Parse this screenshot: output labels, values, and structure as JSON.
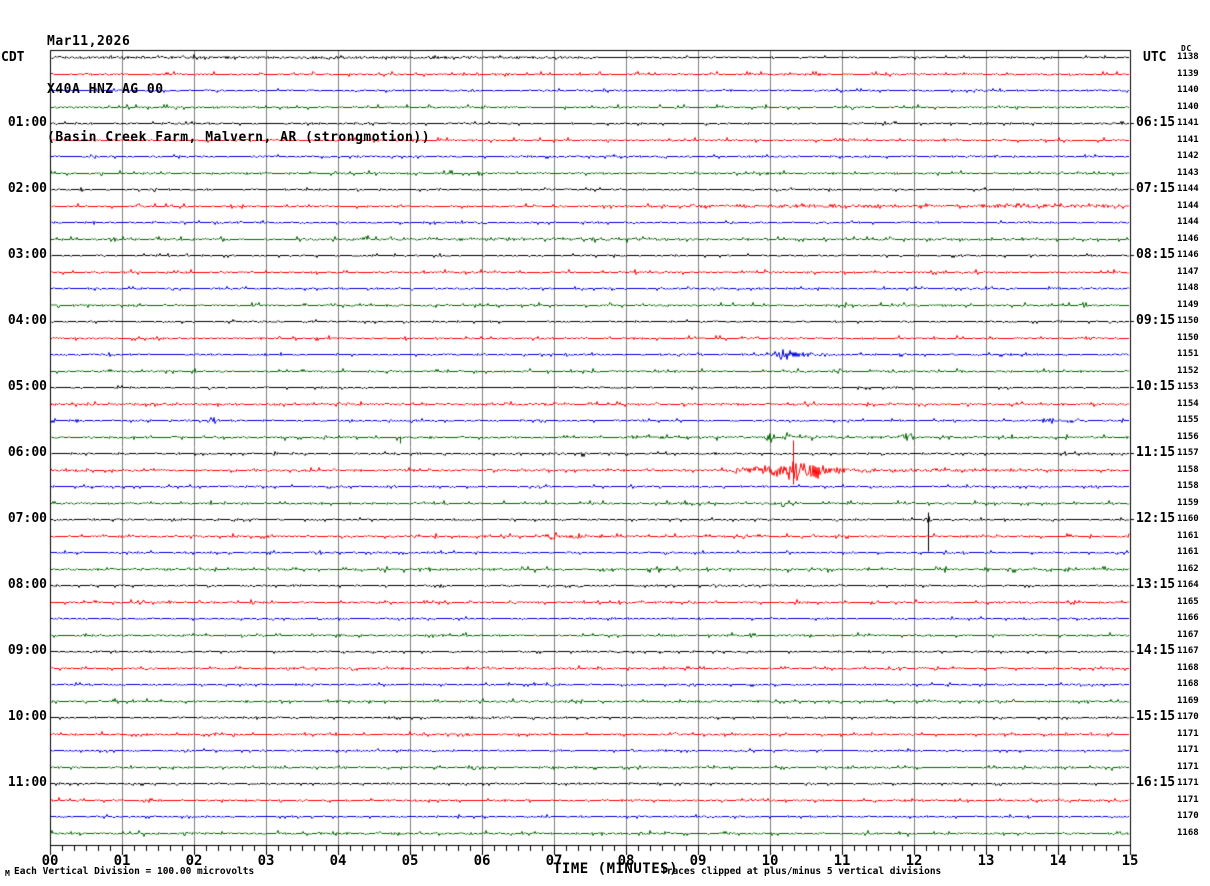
{
  "title": {
    "line1": "Mar11,2026",
    "line2": "X40A HNZ AG 00",
    "line3": "(Basin Creek Farm, Malvern, AR (strongmotion))"
  },
  "axis": {
    "left_timezone_label": "CDT",
    "right_timezone_label": "UTC",
    "dc_column_label": "DC",
    "x_axis_label": "TIME (MINUTES)",
    "x_tick_labels": [
      "00",
      "01",
      "02",
      "03",
      "04",
      "05",
      "06",
      "07",
      "08",
      "09",
      "10",
      "11",
      "12",
      "13",
      "14",
      "15"
    ],
    "footnote_marker": "M",
    "footnote_left": "Each Vertical Division =  100.00 microvolts",
    "footnote_right": "Traces clipped at plus/minus 5 vertical divisions"
  },
  "chart_data": {
    "type": "line",
    "subtype": "helicorder-seismogram",
    "date": "Mar11,2026",
    "station": "X40A HNZ AG 00",
    "location": "(Basin Creek Farm, Malvern, AR (strongmotion))",
    "minutes_per_line": 15,
    "x_axis": {
      "label": "TIME (MINUTES)",
      "min": 0,
      "max": 15,
      "major_tick_minutes": 1,
      "minor_tick_seconds": 10
    },
    "left_time_zone": "CDT",
    "right_time_zone": "UTC",
    "vertical_division": "100.00 microvolts",
    "clip_note": "Traces clipped at plus/minus 5 vertical divisions",
    "trace_color_cycle": [
      "black",
      "red",
      "blue",
      "green"
    ],
    "colors": {
      "black": "#000000",
      "red": "#ff0000",
      "blue": "#0000dd",
      "green": "#006400",
      "grid": "#808080"
    },
    "rows": [
      {
        "cdt": "",
        "utc": "",
        "dc": 1138,
        "color": "black",
        "amp": 0.7,
        "events": [
          {
            "t": "noise",
            "from": 0,
            "to": 7.6,
            "amp": 0.6
          }
        ]
      },
      {
        "cdt": "",
        "utc": "",
        "dc": 1139,
        "color": "red",
        "amp": 0.95,
        "events": []
      },
      {
        "cdt": "",
        "utc": "",
        "dc": 1140,
        "color": "blue",
        "amp": 0.8,
        "events": []
      },
      {
        "cdt": "",
        "utc": "",
        "dc": 1140,
        "color": "green",
        "amp": 1.0,
        "events": []
      },
      {
        "cdt": "01:00",
        "utc": "06:15",
        "dc": 1141,
        "color": "black",
        "amp": 0.7,
        "events": []
      },
      {
        "cdt": "",
        "utc": "",
        "dc": 1141,
        "color": "red",
        "amp": 0.95,
        "events": []
      },
      {
        "cdt": "",
        "utc": "",
        "dc": 1142,
        "color": "blue",
        "amp": 0.8,
        "events": []
      },
      {
        "cdt": "",
        "utc": "",
        "dc": 1143,
        "color": "green",
        "amp": 1.0,
        "events": []
      },
      {
        "cdt": "02:00",
        "utc": "07:15",
        "dc": 1144,
        "color": "black",
        "amp": 0.7,
        "events": []
      },
      {
        "cdt": "",
        "utc": "",
        "dc": 1144,
        "color": "red",
        "amp": 0.95,
        "events": [
          {
            "t": "noise",
            "from": 8.9,
            "to": 15,
            "amp": 0.8
          }
        ]
      },
      {
        "cdt": "",
        "utc": "",
        "dc": 1144,
        "color": "blue",
        "amp": 0.8,
        "events": []
      },
      {
        "cdt": "",
        "utc": "",
        "dc": 1146,
        "color": "green",
        "amp": 1.1,
        "events": [
          {
            "t": "noise",
            "from": 4,
            "to": 9,
            "amp": 0.5
          }
        ]
      },
      {
        "cdt": "03:00",
        "utc": "08:15",
        "dc": 1146,
        "color": "black",
        "amp": 0.7,
        "events": []
      },
      {
        "cdt": "",
        "utc": "",
        "dc": 1147,
        "color": "red",
        "amp": 0.95,
        "events": []
      },
      {
        "cdt": "",
        "utc": "",
        "dc": 1148,
        "color": "blue",
        "amp": 0.8,
        "events": []
      },
      {
        "cdt": "",
        "utc": "",
        "dc": 1149,
        "color": "green",
        "amp": 1.0,
        "events": []
      },
      {
        "cdt": "04:00",
        "utc": "09:15",
        "dc": 1150,
        "color": "black",
        "amp": 0.7,
        "events": []
      },
      {
        "cdt": "",
        "utc": "",
        "dc": 1150,
        "color": "red",
        "amp": 0.95,
        "events": [
          {
            "t": "burst",
            "m": 14.4,
            "w": 7,
            "amp": 2.5
          }
        ]
      },
      {
        "cdt": "",
        "utc": "",
        "dc": 1151,
        "color": "blue",
        "amp": 0.8,
        "events": [
          {
            "t": "burst",
            "m": 10.2,
            "w": 14,
            "amp": 5
          },
          {
            "t": "burst",
            "m": 10.55,
            "w": 22,
            "amp": 2
          }
        ]
      },
      {
        "cdt": "",
        "utc": "",
        "dc": 1152,
        "color": "green",
        "amp": 1.0,
        "events": []
      },
      {
        "cdt": "05:00",
        "utc": "10:15",
        "dc": 1153,
        "color": "black",
        "amp": 0.7,
        "events": []
      },
      {
        "cdt": "",
        "utc": "",
        "dc": 1154,
        "color": "red",
        "amp": 0.95,
        "events": [
          {
            "t": "noise",
            "from": 0,
            "to": 15,
            "amp": 0.3
          }
        ]
      },
      {
        "cdt": "",
        "utc": "",
        "dc": 1155,
        "color": "blue",
        "amp": 0.8,
        "events": [
          {
            "t": "burst",
            "m": 2.29,
            "w": 5,
            "amp": 3.5
          },
          {
            "t": "burst",
            "m": 13.9,
            "w": 10,
            "amp": 3.5
          },
          {
            "t": "burst",
            "m": 14.2,
            "w": 16,
            "amp": 1.5
          }
        ]
      },
      {
        "cdt": "",
        "utc": "",
        "dc": 1156,
        "color": "green",
        "amp": 1.1,
        "events": [
          {
            "t": "spike",
            "m": 4.86,
            "up": 1,
            "down": 6
          },
          {
            "t": "burst",
            "m": 10.0,
            "w": 4,
            "amp": 6
          },
          {
            "t": "burst",
            "m": 10.25,
            "w": 4,
            "amp": 5
          },
          {
            "t": "burst",
            "m": 11.9,
            "w": 7,
            "amp": 4
          },
          {
            "t": "noise",
            "from": 8,
            "to": 13,
            "amp": 0.4
          }
        ]
      },
      {
        "cdt": "06:00",
        "utc": "11:15",
        "dc": 1157,
        "color": "black",
        "amp": 0.75,
        "events": [
          {
            "t": "burst",
            "m": 3.12,
            "w": 3,
            "amp": 3.5
          },
          {
            "t": "burst",
            "m": 7.4,
            "w": 3,
            "amp": 3.5
          }
        ]
      },
      {
        "cdt": "",
        "utc": "",
        "dc": 1158,
        "color": "red",
        "amp": 0.95,
        "events": [
          {
            "t": "noise",
            "from": 0,
            "to": 15,
            "amp": 0.3
          },
          {
            "t": "burst",
            "m": 9.6,
            "w": 14,
            "amp": 2.5
          },
          {
            "t": "burst",
            "m": 10.05,
            "w": 16,
            "amp": 7
          },
          {
            "t": "burst",
            "m": 10.32,
            "w": 10,
            "amp": 11
          },
          {
            "t": "spike",
            "m": 10.32,
            "up": 30,
            "down": 14
          },
          {
            "t": "burst",
            "m": 10.55,
            "w": 12,
            "amp": 8
          },
          {
            "t": "burst",
            "m": 10.85,
            "w": 20,
            "amp": 3
          },
          {
            "t": "noise",
            "from": 11.3,
            "to": 13.8,
            "amp": 0.7
          }
        ]
      },
      {
        "cdt": "",
        "utc": "",
        "dc": 1158,
        "color": "blue",
        "amp": 0.8,
        "events": []
      },
      {
        "cdt": "",
        "utc": "",
        "dc": 1159,
        "color": "green",
        "amp": 1.0,
        "events": [
          {
            "t": "burst",
            "m": 10.18,
            "w": 3,
            "amp": 4
          }
        ]
      },
      {
        "cdt": "07:00",
        "utc": "12:15",
        "dc": 1160,
        "color": "black",
        "amp": 0.75,
        "events": [
          {
            "t": "burst",
            "m": 12.19,
            "w": 4,
            "amp": 4
          },
          {
            "t": "spike",
            "m": 12.19,
            "up": 7,
            "down": 32
          }
        ]
      },
      {
        "cdt": "",
        "utc": "",
        "dc": 1161,
        "color": "red",
        "amp": 0.95,
        "events": [
          {
            "t": "burst",
            "m": 7.0,
            "w": 7,
            "amp": 4.5
          },
          {
            "t": "burst",
            "m": 7.35,
            "w": 12,
            "amp": 2.5
          }
        ]
      },
      {
        "cdt": "",
        "utc": "",
        "dc": 1161,
        "color": "blue",
        "amp": 0.8,
        "events": []
      },
      {
        "cdt": "",
        "utc": "",
        "dc": 1162,
        "color": "green",
        "amp": 1.1,
        "events": [
          {
            "t": "noise",
            "from": 0,
            "to": 15,
            "amp": 0.3
          }
        ]
      },
      {
        "cdt": "08:00",
        "utc": "13:15",
        "dc": 1164,
        "color": "black",
        "amp": 0.7,
        "events": []
      },
      {
        "cdt": "",
        "utc": "",
        "dc": 1165,
        "color": "red",
        "amp": 0.95,
        "events": []
      },
      {
        "cdt": "",
        "utc": "",
        "dc": 1166,
        "color": "blue",
        "amp": 0.8,
        "events": []
      },
      {
        "cdt": "",
        "utc": "",
        "dc": 1167,
        "color": "green",
        "amp": 1.0,
        "events": []
      },
      {
        "cdt": "09:00",
        "utc": "14:15",
        "dc": 1167,
        "color": "black",
        "amp": 0.7,
        "events": []
      },
      {
        "cdt": "",
        "utc": "",
        "dc": 1168,
        "color": "red",
        "amp": 0.95,
        "events": []
      },
      {
        "cdt": "",
        "utc": "",
        "dc": 1168,
        "color": "blue",
        "amp": 0.8,
        "events": []
      },
      {
        "cdt": "",
        "utc": "",
        "dc": 1169,
        "color": "green",
        "amp": 1.0,
        "events": []
      },
      {
        "cdt": "10:00",
        "utc": "15:15",
        "dc": 1170,
        "color": "black",
        "amp": 0.7,
        "events": []
      },
      {
        "cdt": "",
        "utc": "",
        "dc": 1171,
        "color": "red",
        "amp": 0.95,
        "events": []
      },
      {
        "cdt": "",
        "utc": "",
        "dc": 1171,
        "color": "blue",
        "amp": 0.8,
        "events": []
      },
      {
        "cdt": "",
        "utc": "",
        "dc": 1171,
        "color": "green",
        "amp": 1.0,
        "events": []
      },
      {
        "cdt": "11:00",
        "utc": "16:15",
        "dc": 1171,
        "color": "black",
        "amp": 0.7,
        "events": [
          {
            "t": "burst",
            "m": 14.65,
            "w": 3,
            "amp": 2.5
          }
        ]
      },
      {
        "cdt": "",
        "utc": "",
        "dc": 1171,
        "color": "red",
        "amp": 0.95,
        "events": []
      },
      {
        "cdt": "",
        "utc": "",
        "dc": 1170,
        "color": "blue",
        "amp": 0.8,
        "events": []
      },
      {
        "cdt": "",
        "utc": "",
        "dc": 1168,
        "color": "green",
        "amp": 1.0,
        "events": []
      }
    ]
  }
}
